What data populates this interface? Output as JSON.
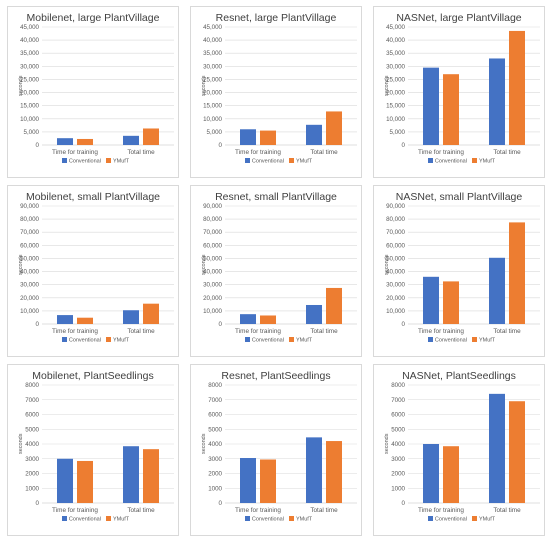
{
  "colors": {
    "conventional": "#4472c4",
    "ymuft": "#ed7d31",
    "grid": "#d9d9d9",
    "text": "#595959"
  },
  "chart_data": [
    {
      "type": "bar",
      "title": "Mobilenet, large PlantVillage",
      "categories": [
        "Time for training",
        "Total time"
      ],
      "series": [
        {
          "name": "Conventional",
          "values": [
            2600,
            3500
          ]
        },
        {
          "name": "YMufT",
          "values": [
            2300,
            6300
          ]
        }
      ],
      "ylabel": "seconds",
      "ylim": [
        0,
        45000
      ],
      "yticks": [
        "0",
        "5,000",
        "10,000",
        "15,000",
        "20,000",
        "25,000",
        "30,000",
        "35,000",
        "40,000",
        "45,000"
      ],
      "legend": "bottom",
      "grid": true
    },
    {
      "type": "bar",
      "title": "Resnet, large PlantVillage",
      "categories": [
        "Time for training",
        "Total time"
      ],
      "series": [
        {
          "name": "Conventional",
          "values": [
            6000,
            7700
          ]
        },
        {
          "name": "YMufT",
          "values": [
            5500,
            12800
          ]
        }
      ],
      "ylabel": "seconds",
      "ylim": [
        0,
        45000
      ],
      "yticks": [
        "0",
        "5,000",
        "10,000",
        "15,000",
        "20,000",
        "25,000",
        "30,000",
        "35,000",
        "40,000",
        "45,000"
      ],
      "legend": "bottom",
      "grid": true
    },
    {
      "type": "bar",
      "title": "NASNet, large PlantVillage",
      "categories": [
        "Time for training",
        "Total time"
      ],
      "series": [
        {
          "name": "Conventional",
          "values": [
            29500,
            33000
          ]
        },
        {
          "name": "YMufT",
          "values": [
            27000,
            43500
          ]
        }
      ],
      "ylabel": "seconds",
      "ylim": [
        0,
        45000
      ],
      "yticks": [
        "0",
        "5,000",
        "10,000",
        "15,000",
        "20,000",
        "25,000",
        "30,000",
        "35,000",
        "40,000",
        "45,000"
      ],
      "legend": "bottom",
      "grid": true
    },
    {
      "type": "bar",
      "title": "Mobilenet, small PlantVillage",
      "categories": [
        "Time for training",
        "Total time"
      ],
      "series": [
        {
          "name": "Conventional",
          "values": [
            6800,
            10500
          ]
        },
        {
          "name": "YMufT",
          "values": [
            4800,
            15500
          ]
        }
      ],
      "ylabel": "seconds",
      "ylim": [
        0,
        90000
      ],
      "yticks": [
        "0",
        "10,000",
        "20,000",
        "30,000",
        "40,000",
        "50,000",
        "60,000",
        "70,000",
        "80,000",
        "90,000"
      ],
      "legend": "bottom",
      "grid": true
    },
    {
      "type": "bar",
      "title": "Resnet, small PlantVillage",
      "categories": [
        "Time for training",
        "Total time"
      ],
      "series": [
        {
          "name": "Conventional",
          "values": [
            7500,
            14500
          ]
        },
        {
          "name": "YMufT",
          "values": [
            6500,
            27500
          ]
        }
      ],
      "ylabel": "seconds",
      "ylim": [
        0,
        90000
      ],
      "yticks": [
        "0",
        "10,000",
        "20,000",
        "30,000",
        "40,000",
        "50,000",
        "60,000",
        "70,000",
        "80,000",
        "90,000"
      ],
      "legend": "bottom",
      "grid": true
    },
    {
      "type": "bar",
      "title": "NASNet, small PlantVillage",
      "categories": [
        "Time for training",
        "Total time"
      ],
      "series": [
        {
          "name": "Conventional",
          "values": [
            36000,
            50500
          ]
        },
        {
          "name": "YMufT",
          "values": [
            32500,
            77500
          ]
        }
      ],
      "ylabel": "seconds",
      "ylim": [
        0,
        90000
      ],
      "yticks": [
        "0",
        "10,000",
        "20,000",
        "30,000",
        "40,000",
        "50,000",
        "60,000",
        "70,000",
        "80,000",
        "90,000"
      ],
      "legend": "bottom",
      "grid": true
    },
    {
      "type": "bar",
      "title": "Mobilenet, PlantSeedlings",
      "categories": [
        "Time for training",
        "Total time"
      ],
      "series": [
        {
          "name": "Conventional",
          "values": [
            3000,
            3850
          ]
        },
        {
          "name": "YMufT",
          "values": [
            2850,
            3650
          ]
        }
      ],
      "ylabel": "seconds",
      "ylim": [
        0,
        8000
      ],
      "yticks": [
        "0",
        "1000",
        "2000",
        "3000",
        "4000",
        "5000",
        "6000",
        "7000",
        "8000"
      ],
      "legend": "bottom",
      "grid": true
    },
    {
      "type": "bar",
      "title": "Resnet, PlantSeedlings",
      "categories": [
        "Time for training",
        "Total time"
      ],
      "series": [
        {
          "name": "Conventional",
          "values": [
            3050,
            4450
          ]
        },
        {
          "name": "YMufT",
          "values": [
            2950,
            4200
          ]
        }
      ],
      "ylabel": "seconds",
      "ylim": [
        0,
        8000
      ],
      "yticks": [
        "0",
        "1000",
        "2000",
        "3000",
        "4000",
        "5000",
        "6000",
        "7000",
        "8000"
      ],
      "legend": "bottom",
      "grid": true
    },
    {
      "type": "bar",
      "title": "NASNet, PlantSeedlings",
      "categories": [
        "Time for training",
        "Total time"
      ],
      "series": [
        {
          "name": "Conventional",
          "values": [
            4000,
            7400
          ]
        },
        {
          "name": "YMufT",
          "values": [
            3850,
            6900
          ]
        }
      ],
      "ylabel": "seconds",
      "ylim": [
        0,
        8000
      ],
      "yticks": [
        "0",
        "1000",
        "2000",
        "3000",
        "4000",
        "5000",
        "6000",
        "7000",
        "8000"
      ],
      "legend": "bottom",
      "grid": true
    }
  ]
}
